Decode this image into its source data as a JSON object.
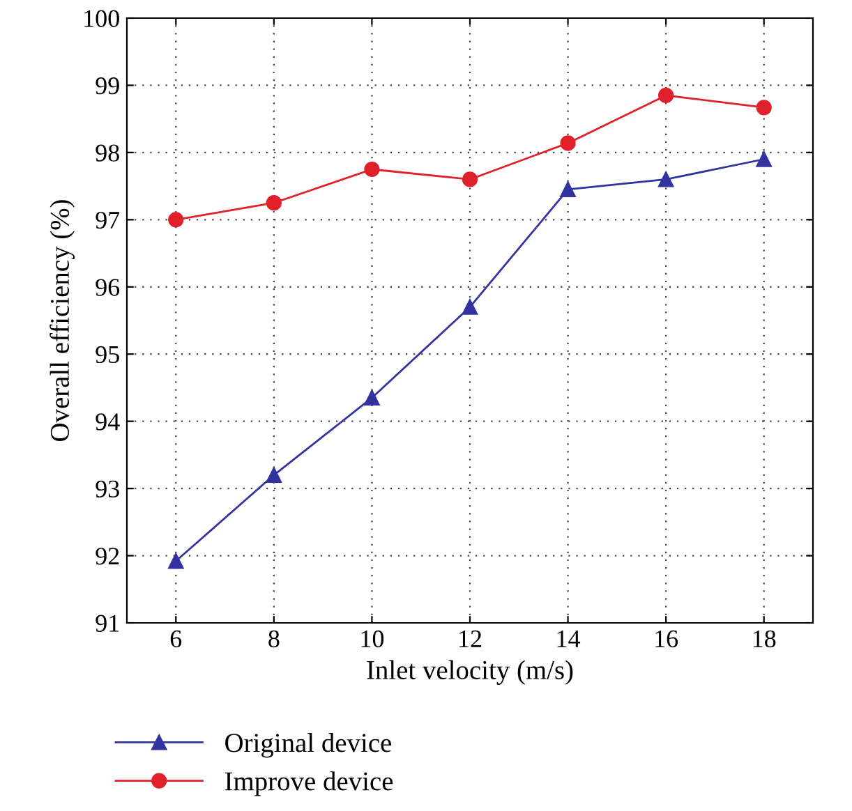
{
  "chart_data": {
    "type": "line",
    "xlabel": "Inlet velocity (m/s)",
    "ylabel": "Overall efficiency (%)",
    "x": [
      6,
      8,
      10,
      12,
      14,
      16,
      18
    ],
    "series": [
      {
        "name": "Original device",
        "color": "#3333a0",
        "marker": "triangle",
        "values": [
          91.92,
          93.2,
          94.35,
          95.7,
          97.45,
          97.6,
          97.9
        ]
      },
      {
        "name": "Improve device",
        "color": "#e0202a",
        "marker": "circle",
        "values": [
          97.0,
          97.25,
          97.75,
          97.6,
          98.14,
          98.85,
          98.67
        ]
      }
    ],
    "xlim": [
      5,
      19
    ],
    "xticks": [
      6,
      8,
      10,
      12,
      14,
      16,
      18
    ],
    "ylim": [
      91,
      100
    ],
    "yticks": [
      91,
      92,
      93,
      94,
      95,
      96,
      97,
      98,
      99,
      100
    ],
    "grid": true,
    "legend": "bottom",
    "line_style": "solid"
  }
}
